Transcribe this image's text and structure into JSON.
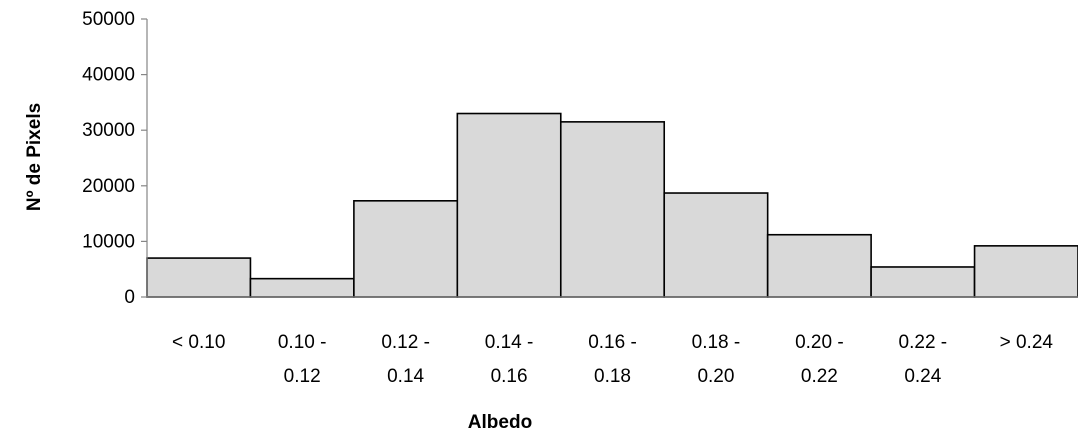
{
  "chart_data": {
    "type": "bar",
    "title": "",
    "xlabel": "Albedo",
    "ylabel": "Nº de Pixels",
    "categories": [
      [
        "< 0.10"
      ],
      [
        "0.10 -",
        "0.12"
      ],
      [
        "0.12 -",
        "0.14"
      ],
      [
        "0.14 -",
        "0.16"
      ],
      [
        "0.16 -",
        "0.18"
      ],
      [
        "0.18 -",
        "0.20"
      ],
      [
        "0.20 -",
        "0.22"
      ],
      [
        "0.22 -",
        "0.24"
      ],
      [
        "> 0.24"
      ]
    ],
    "values": [
      7000,
      3300,
      17300,
      33000,
      31500,
      18700,
      11200,
      5400,
      9200
    ],
    "ylim": [
      0,
      50000
    ],
    "yticks": [
      0,
      10000,
      20000,
      30000,
      40000,
      50000
    ],
    "grid": false,
    "legend": "none",
    "bar_color": "#d9d9d9",
    "bar_edge_color": "#000000",
    "axis_color": "#868686"
  }
}
